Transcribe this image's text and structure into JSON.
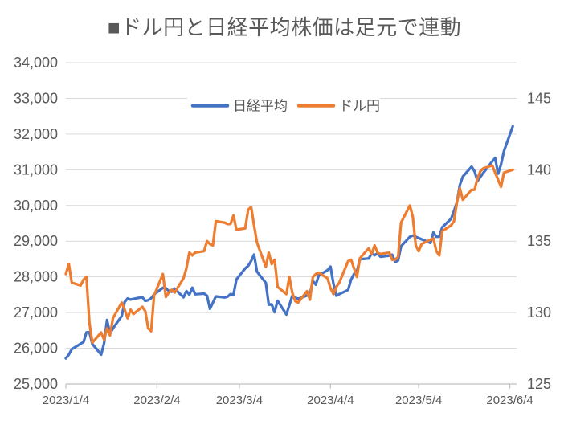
{
  "title": {
    "text": "■ドル円と日経平均株価は足元で連動",
    "color": "#595959"
  },
  "legend": {
    "items": [
      {
        "label": "日経平均",
        "color": "#4472C4"
      },
      {
        "label": "ドル円",
        "color": "#ED7D31"
      }
    ]
  },
  "style_colors": {
    "axis_text": "#595959",
    "gridline": "#D9D9D9",
    "axis_line": "#BFBFBF",
    "background": "#FFFFFF",
    "nikkei_blue": "#4472C4",
    "dollar_yen_orange": "#ED7D31"
  },
  "chart_data": {
    "type": "line",
    "title": "■ドル円と日経平均株価は足元で連動",
    "grid": true,
    "legend_position": "top-center-inside",
    "x_axis": {
      "kind": "date",
      "tick_labels": [
        "2023/1/4",
        "2023/2/4",
        "2023/3/4",
        "2023/4/4",
        "2023/5/4",
        "2023/6/4"
      ],
      "tick_day_offsets": [
        0,
        31,
        59,
        90,
        120,
        151
      ],
      "min_day_offset": 0,
      "max_day_offset": 153.3
    },
    "y_axis_left": {
      "series": "日経平均",
      "min": 25000,
      "max": 34000,
      "step": 1000,
      "tick_values": [
        25000,
        26000,
        27000,
        28000,
        29000,
        30000,
        31000,
        32000,
        33000,
        34000
      ],
      "tick_labels": [
        "25,000",
        "26,000",
        "27,000",
        "28,000",
        "29,000",
        "30,000",
        "31,000",
        "32,000",
        "33,000",
        "34,000"
      ]
    },
    "y_axis_right": {
      "series": "ドル円",
      "min": 125,
      "max": 147.5,
      "step": 5,
      "tick_values": [
        125,
        130,
        135,
        140,
        145
      ],
      "tick_labels": [
        "125",
        "130",
        "135",
        "140",
        "145"
      ]
    },
    "series": [
      {
        "name": "日経平均",
        "axis": "left",
        "color": "#4472C4",
        "points": [
          [
            0,
            25717
          ],
          [
            1,
            25821
          ],
          [
            2,
            25974
          ],
          [
            6,
            26176
          ],
          [
            7,
            26446
          ],
          [
            8,
            26450
          ],
          [
            9,
            26120
          ],
          [
            12,
            25822
          ],
          [
            13,
            26139
          ],
          [
            14,
            26791
          ],
          [
            15,
            26405
          ],
          [
            16,
            26554
          ],
          [
            19,
            26906
          ],
          [
            20,
            27299
          ],
          [
            21,
            27395
          ],
          [
            22,
            27363
          ],
          [
            23,
            27383
          ],
          [
            26,
            27433
          ],
          [
            27,
            27327
          ],
          [
            28,
            27347
          ],
          [
            29,
            27402
          ],
          [
            30,
            27509
          ],
          [
            33,
            27694
          ],
          [
            34,
            27685
          ],
          [
            35,
            27606
          ],
          [
            36,
            27584
          ],
          [
            37,
            27671
          ],
          [
            40,
            27427
          ],
          [
            41,
            27603
          ],
          [
            42,
            27502
          ],
          [
            43,
            27696
          ],
          [
            44,
            27513
          ],
          [
            47,
            27532
          ],
          [
            48,
            27473
          ],
          [
            49,
            27104
          ],
          [
            51,
            27453
          ],
          [
            54,
            27424
          ],
          [
            55,
            27446
          ],
          [
            56,
            27517
          ],
          [
            57,
            27499
          ],
          [
            58,
            27927
          ],
          [
            61,
            28238
          ],
          [
            62,
            28309
          ],
          [
            63,
            28444
          ],
          [
            64,
            28623
          ],
          [
            65,
            28144
          ],
          [
            68,
            27833
          ],
          [
            69,
            27222
          ],
          [
            70,
            27229
          ],
          [
            71,
            27011
          ],
          [
            72,
            27334
          ],
          [
            75,
            26946
          ],
          [
            77,
            27467
          ],
          [
            78,
            27420
          ],
          [
            79,
            27385
          ],
          [
            82,
            27477
          ],
          [
            83,
            27518
          ],
          [
            84,
            27884
          ],
          [
            85,
            27783
          ],
          [
            86,
            28041
          ],
          [
            89,
            28188
          ],
          [
            90,
            28287
          ],
          [
            91,
            27813
          ],
          [
            92,
            27473
          ],
          [
            93,
            27518
          ],
          [
            96,
            27634
          ],
          [
            97,
            27923
          ],
          [
            98,
            28083
          ],
          [
            99,
            28157
          ],
          [
            100,
            28493
          ],
          [
            103,
            28515
          ],
          [
            104,
            28659
          ],
          [
            105,
            28607
          ],
          [
            106,
            28658
          ],
          [
            107,
            28564
          ],
          [
            110,
            28594
          ],
          [
            111,
            28620
          ],
          [
            112,
            28416
          ],
          [
            113,
            28458
          ],
          [
            114,
            28856
          ],
          [
            117,
            29123
          ],
          [
            118,
            29158
          ],
          [
            124,
            28950
          ],
          [
            125,
            29243
          ],
          [
            126,
            29122
          ],
          [
            127,
            29127
          ],
          [
            128,
            29388
          ],
          [
            131,
            29626
          ],
          [
            132,
            29843
          ],
          [
            133,
            30094
          ],
          [
            134,
            30574
          ],
          [
            135,
            30808
          ],
          [
            138,
            31087
          ],
          [
            139,
            30958
          ],
          [
            140,
            30683
          ],
          [
            141,
            30801
          ],
          [
            142,
            30916
          ],
          [
            145,
            31234
          ],
          [
            146,
            31328
          ],
          [
            147,
            30888
          ],
          [
            148,
            31148
          ],
          [
            149,
            31524
          ],
          [
            152,
            32217
          ]
        ]
      },
      {
        "name": "ドル円",
        "axis": "right",
        "color": "#ED7D31",
        "points": [
          [
            0,
            132.7
          ],
          [
            1,
            133.4
          ],
          [
            2,
            132.1
          ],
          [
            5,
            131.9
          ],
          [
            6,
            132.3
          ],
          [
            7,
            132.5
          ],
          [
            8,
            129.3
          ],
          [
            9,
            127.9
          ],
          [
            12,
            128.6
          ],
          [
            13,
            128.1
          ],
          [
            14,
            128.9
          ],
          [
            15,
            128.4
          ],
          [
            16,
            129.6
          ],
          [
            19,
            130.7
          ],
          [
            20,
            130.2
          ],
          [
            21,
            129.6
          ],
          [
            22,
            130.2
          ],
          [
            23,
            129.9
          ],
          [
            26,
            130.4
          ],
          [
            27,
            130.1
          ],
          [
            28,
            128.9
          ],
          [
            29,
            128.7
          ],
          [
            30,
            131.2
          ],
          [
            33,
            132.7
          ],
          [
            34,
            131.1
          ],
          [
            35,
            131.4
          ],
          [
            36,
            131.6
          ],
          [
            37,
            131.4
          ],
          [
            40,
            132.4
          ],
          [
            41,
            133.1
          ],
          [
            42,
            134.2
          ],
          [
            43,
            134.0
          ],
          [
            44,
            134.2
          ],
          [
            47,
            134.3
          ],
          [
            48,
            135.0
          ],
          [
            49,
            134.8
          ],
          [
            50,
            134.7
          ],
          [
            51,
            136.4
          ],
          [
            54,
            136.3
          ],
          [
            55,
            136.2
          ],
          [
            56,
            136.2
          ],
          [
            57,
            136.8
          ],
          [
            58,
            135.8
          ],
          [
            61,
            135.9
          ],
          [
            62,
            137.2
          ],
          [
            63,
            137.4
          ],
          [
            64,
            136.1
          ],
          [
            65,
            134.9
          ],
          [
            68,
            133.2
          ],
          [
            69,
            134.2
          ],
          [
            70,
            133.4
          ],
          [
            71,
            133.7
          ],
          [
            72,
            131.8
          ],
          [
            75,
            131.3
          ],
          [
            76,
            132.5
          ],
          [
            77,
            131.4
          ],
          [
            78,
            130.8
          ],
          [
            79,
            130.7
          ],
          [
            82,
            131.5
          ],
          [
            83,
            130.9
          ],
          [
            84,
            132.5
          ],
          [
            85,
            132.7
          ],
          [
            86,
            132.8
          ],
          [
            89,
            132.4
          ],
          [
            90,
            131.7
          ],
          [
            91,
            131.3
          ],
          [
            92,
            131.8
          ],
          [
            93,
            132.1
          ],
          [
            96,
            133.6
          ],
          [
            97,
            133.7
          ],
          [
            98,
            133.1
          ],
          [
            99,
            132.5
          ],
          [
            100,
            133.8
          ],
          [
            103,
            134.5
          ],
          [
            104,
            134.1
          ],
          [
            105,
            134.7
          ],
          [
            106,
            134.2
          ],
          [
            107,
            134.1
          ],
          [
            110,
            134.2
          ],
          [
            111,
            133.7
          ],
          [
            112,
            133.7
          ],
          [
            113,
            133.9
          ],
          [
            114,
            136.3
          ],
          [
            117,
            137.5
          ],
          [
            118,
            136.7
          ],
          [
            119,
            134.7
          ],
          [
            120,
            134.3
          ],
          [
            121,
            134.8
          ],
          [
            124,
            135.1
          ],
          [
            125,
            135.2
          ],
          [
            126,
            134.3
          ],
          [
            127,
            134.0
          ],
          [
            128,
            135.7
          ],
          [
            131,
            136.1
          ],
          [
            132,
            136.4
          ],
          [
            133,
            137.7
          ],
          [
            134,
            138.7
          ],
          [
            135,
            137.9
          ],
          [
            138,
            138.6
          ],
          [
            139,
            138.6
          ],
          [
            140,
            139.4
          ],
          [
            141,
            139.9
          ],
          [
            142,
            140.1
          ],
          [
            145,
            140.3
          ],
          [
            146,
            139.8
          ],
          [
            147,
            139.3
          ],
          [
            148,
            138.8
          ],
          [
            149,
            139.8
          ],
          [
            152,
            140.0
          ]
        ]
      }
    ]
  }
}
